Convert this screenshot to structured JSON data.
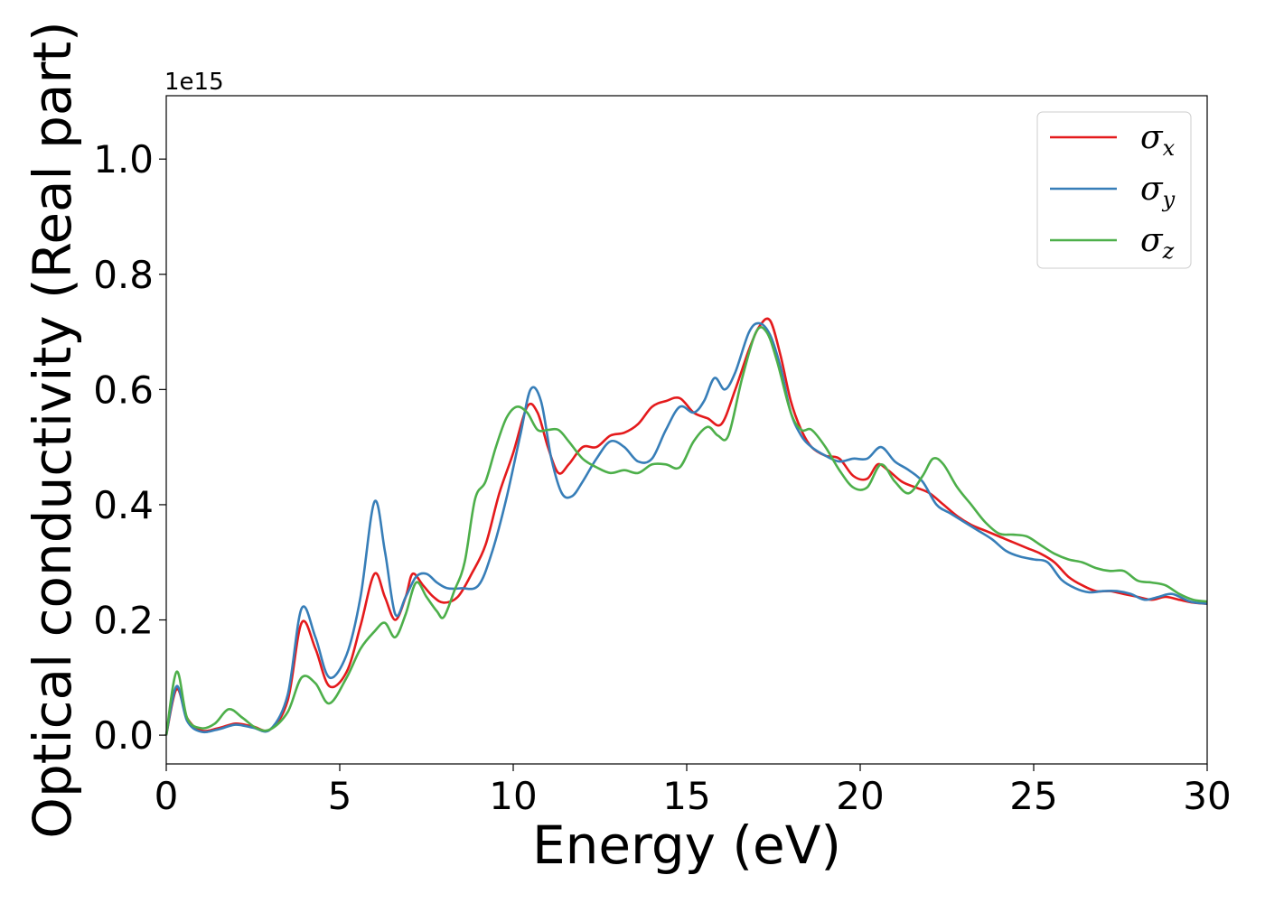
{
  "chart_data": {
    "type": "line",
    "xlabel": "Energy (eV)",
    "ylabel": "Optical conductivity (Real part)",
    "y_offset_text": "1e15",
    "xlim": [
      0,
      30
    ],
    "ylim": [
      -0.05,
      1.11
    ],
    "x_ticks": [
      0,
      5,
      10,
      15,
      20,
      25,
      30
    ],
    "x_tick_labels": [
      "0",
      "5",
      "10",
      "15",
      "20",
      "25",
      "30"
    ],
    "y_ticks": [
      0.0,
      0.2,
      0.4,
      0.6,
      0.8,
      1.0
    ],
    "y_tick_labels": [
      "0.0",
      "0.2",
      "0.4",
      "0.6",
      "0.8",
      "1.0"
    ],
    "grid": false,
    "legend_position": "top-right",
    "series": [
      {
        "name": "σx",
        "symbol": "σ",
        "subscript": "x",
        "color": "#e41a1c",
        "x": [
          0,
          0.3,
          0.6,
          1.0,
          1.5,
          2.0,
          2.5,
          3.0,
          3.5,
          3.9,
          4.3,
          4.7,
          5.2,
          5.6,
          6.0,
          6.3,
          6.6,
          6.9,
          7.1,
          7.4,
          7.7,
          8.0,
          8.4,
          8.8,
          9.2,
          9.6,
          10.0,
          10.4,
          10.7,
          11.0,
          11.3,
          11.6,
          12.0,
          12.4,
          12.8,
          13.2,
          13.6,
          14.0,
          14.4,
          14.8,
          15.2,
          15.6,
          16.0,
          16.4,
          16.8,
          17.1,
          17.4,
          17.7,
          18.0,
          18.3,
          18.6,
          19.0,
          19.4,
          19.8,
          20.2,
          20.5,
          20.8,
          21.2,
          21.6,
          22.0,
          22.4,
          22.8,
          23.2,
          23.6,
          24.0,
          24.4,
          24.8,
          25.2,
          25.6,
          26.0,
          26.4,
          26.8,
          27.2,
          27.6,
          28.0,
          28.4,
          28.8,
          29.2,
          29.6,
          30.0
        ],
        "y": [
          0.0,
          0.08,
          0.03,
          0.008,
          0.012,
          0.02,
          0.015,
          0.01,
          0.06,
          0.195,
          0.15,
          0.085,
          0.11,
          0.19,
          0.28,
          0.24,
          0.2,
          0.24,
          0.28,
          0.26,
          0.24,
          0.23,
          0.24,
          0.28,
          0.33,
          0.42,
          0.49,
          0.57,
          0.56,
          0.5,
          0.455,
          0.47,
          0.5,
          0.5,
          0.52,
          0.525,
          0.54,
          0.57,
          0.58,
          0.585,
          0.56,
          0.55,
          0.54,
          0.6,
          0.67,
          0.71,
          0.72,
          0.66,
          0.58,
          0.53,
          0.5,
          0.485,
          0.48,
          0.45,
          0.445,
          0.47,
          0.46,
          0.44,
          0.43,
          0.42,
          0.4,
          0.38,
          0.365,
          0.355,
          0.345,
          0.335,
          0.325,
          0.315,
          0.3,
          0.275,
          0.26,
          0.25,
          0.25,
          0.245,
          0.24,
          0.235,
          0.24,
          0.235,
          0.23,
          0.228
        ]
      },
      {
        "name": "σy",
        "symbol": "σ",
        "subscript": "y",
        "color": "#377eb8",
        "x": [
          0,
          0.3,
          0.6,
          1.0,
          1.5,
          2.0,
          2.5,
          3.0,
          3.5,
          3.9,
          4.3,
          4.7,
          5.2,
          5.6,
          6.0,
          6.3,
          6.6,
          6.9,
          7.2,
          7.5,
          7.8,
          8.1,
          8.5,
          9.0,
          9.4,
          9.8,
          10.2,
          10.5,
          10.8,
          11.1,
          11.4,
          11.7,
          12.0,
          12.4,
          12.8,
          13.2,
          13.6,
          14.0,
          14.4,
          14.8,
          15.2,
          15.5,
          15.8,
          16.1,
          16.4,
          16.8,
          17.1,
          17.4,
          17.7,
          18.0,
          18.3,
          18.6,
          19.0,
          19.4,
          19.8,
          20.2,
          20.6,
          21.0,
          21.4,
          21.8,
          22.2,
          22.6,
          23.0,
          23.4,
          23.8,
          24.2,
          24.6,
          25.0,
          25.4,
          25.8,
          26.2,
          26.6,
          27.0,
          27.4,
          27.8,
          28.2,
          28.6,
          29.0,
          29.5,
          30.0
        ],
        "y": [
          0.0,
          0.085,
          0.025,
          0.006,
          0.01,
          0.018,
          0.013,
          0.01,
          0.07,
          0.22,
          0.17,
          0.1,
          0.14,
          0.24,
          0.405,
          0.32,
          0.21,
          0.24,
          0.275,
          0.28,
          0.265,
          0.255,
          0.255,
          0.26,
          0.32,
          0.41,
          0.52,
          0.6,
          0.58,
          0.48,
          0.42,
          0.415,
          0.44,
          0.48,
          0.51,
          0.5,
          0.475,
          0.48,
          0.53,
          0.57,
          0.56,
          0.58,
          0.62,
          0.6,
          0.63,
          0.7,
          0.715,
          0.695,
          0.64,
          0.56,
          0.52,
          0.5,
          0.485,
          0.475,
          0.48,
          0.48,
          0.5,
          0.475,
          0.46,
          0.44,
          0.4,
          0.385,
          0.37,
          0.355,
          0.34,
          0.32,
          0.31,
          0.305,
          0.3,
          0.27,
          0.255,
          0.248,
          0.25,
          0.25,
          0.245,
          0.235,
          0.24,
          0.245,
          0.232,
          0.228
        ]
      },
      {
        "name": "σz",
        "symbol": "σ",
        "subscript": "z",
        "color": "#4daf4a",
        "x": [
          0,
          0.3,
          0.6,
          1.0,
          1.4,
          1.8,
          2.2,
          2.6,
          3.0,
          3.5,
          3.9,
          4.3,
          4.7,
          5.2,
          5.6,
          6.0,
          6.3,
          6.6,
          6.9,
          7.2,
          7.5,
          7.8,
          8.0,
          8.3,
          8.6,
          8.9,
          9.2,
          9.5,
          9.8,
          10.1,
          10.4,
          10.7,
          11.0,
          11.3,
          11.6,
          12.0,
          12.4,
          12.8,
          13.2,
          13.6,
          14.0,
          14.4,
          14.8,
          15.2,
          15.6,
          15.9,
          16.2,
          16.6,
          17.0,
          17.3,
          17.6,
          18.0,
          18.3,
          18.6,
          19.0,
          19.4,
          19.8,
          20.2,
          20.6,
          21.0,
          21.4,
          21.8,
          22.1,
          22.4,
          22.8,
          23.2,
          23.6,
          24.0,
          24.4,
          24.8,
          25.2,
          25.6,
          26.0,
          26.4,
          26.8,
          27.2,
          27.6,
          28.0,
          28.4,
          28.8,
          29.2,
          29.6,
          30.0
        ],
        "y": [
          0.0,
          0.11,
          0.03,
          0.012,
          0.02,
          0.045,
          0.03,
          0.012,
          0.01,
          0.04,
          0.1,
          0.09,
          0.055,
          0.1,
          0.15,
          0.18,
          0.195,
          0.17,
          0.21,
          0.265,
          0.24,
          0.215,
          0.205,
          0.25,
          0.3,
          0.41,
          0.44,
          0.5,
          0.55,
          0.57,
          0.56,
          0.53,
          0.53,
          0.53,
          0.51,
          0.48,
          0.465,
          0.455,
          0.46,
          0.455,
          0.47,
          0.47,
          0.465,
          0.51,
          0.535,
          0.52,
          0.52,
          0.62,
          0.7,
          0.7,
          0.65,
          0.56,
          0.53,
          0.53,
          0.5,
          0.46,
          0.43,
          0.43,
          0.47,
          0.44,
          0.42,
          0.45,
          0.48,
          0.47,
          0.43,
          0.4,
          0.37,
          0.35,
          0.348,
          0.345,
          0.33,
          0.315,
          0.305,
          0.3,
          0.29,
          0.285,
          0.285,
          0.268,
          0.265,
          0.26,
          0.245,
          0.235,
          0.232
        ]
      }
    ]
  }
}
